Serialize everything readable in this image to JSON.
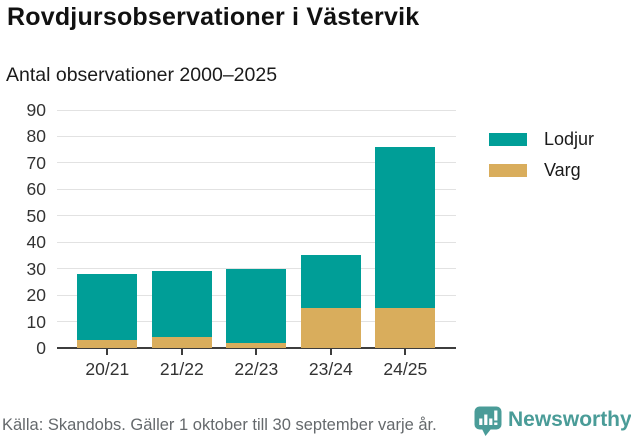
{
  "header": {
    "title": "Rovdjursobservationer i Västervik",
    "subtitle": "Antal observationer 2000–2025"
  },
  "chart_data": {
    "type": "bar",
    "stacked": true,
    "title": "Rovdjursobservationer i Västervik",
    "subtitle": "Antal observationer 2000–2025",
    "categories": [
      "20/21",
      "21/22",
      "22/23",
      "23/24",
      "24/25"
    ],
    "series": [
      {
        "name": "Varg",
        "color": "#d9ad5c",
        "values": [
          3,
          4,
          2,
          15,
          15
        ]
      },
      {
        "name": "Lodjur",
        "color": "#009e97",
        "values": [
          25,
          25,
          28,
          20,
          61
        ]
      }
    ],
    "stack_order": "bottom-to-top",
    "totals": [
      28,
      29,
      30,
      35,
      76
    ],
    "xlabel": "",
    "ylabel": "",
    "ylim": [
      0,
      90
    ],
    "yticks": [
      0,
      10,
      20,
      30,
      40,
      50,
      60,
      70,
      80,
      90
    ],
    "grid": true,
    "legend_position": "right"
  },
  "legend": {
    "items": [
      {
        "label": "Lodjur",
        "color": "#009e97"
      },
      {
        "label": "Varg",
        "color": "#d9ad5c"
      }
    ]
  },
  "footer": {
    "source": "Källa: Skandobs. Gäller 1 oktober till 30 september varje år."
  },
  "branding": {
    "name": "Newsworthy",
    "color": "#4a9c98"
  },
  "colors": {
    "lodjur": "#009e97",
    "varg": "#d9ad5c",
    "gridline": "#e2e2e2",
    "axis": "#3d3d3d",
    "source_text": "#65696c"
  }
}
